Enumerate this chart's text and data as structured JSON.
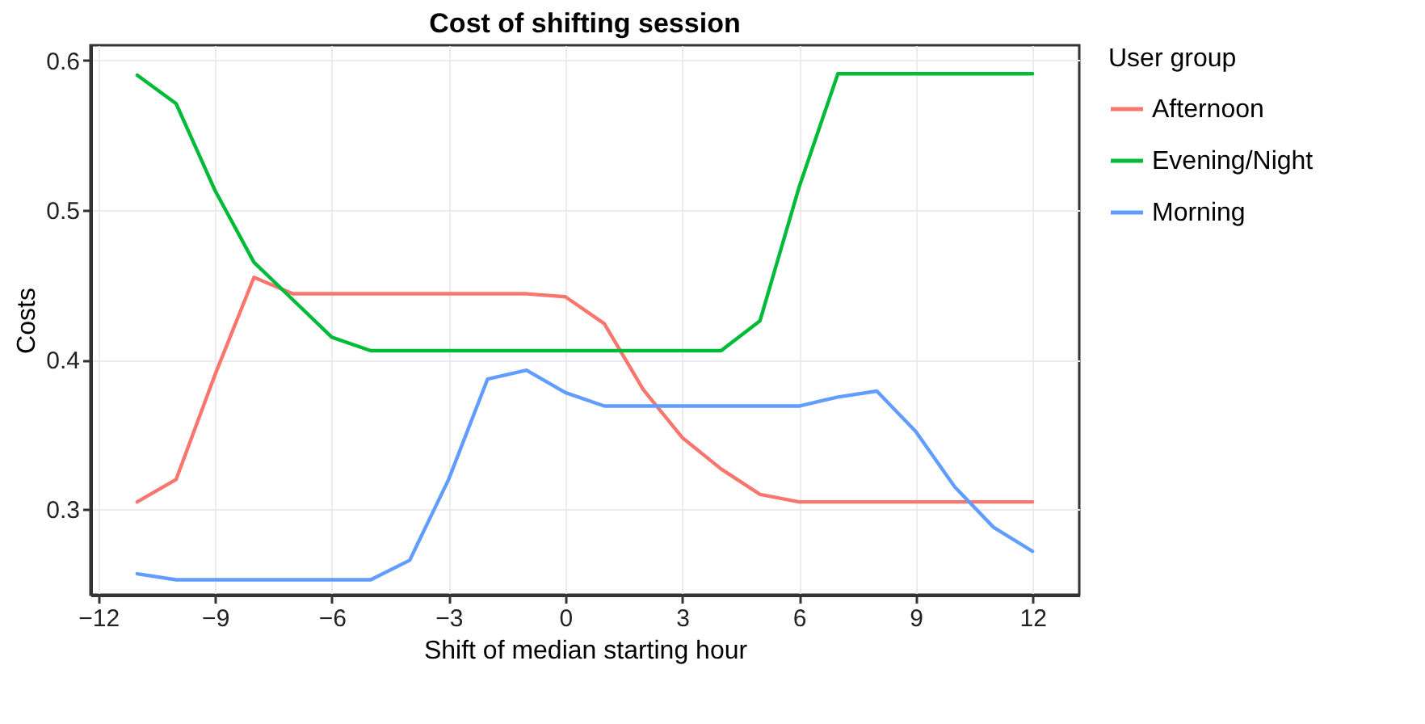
{
  "chart_data": {
    "type": "line",
    "title": "Cost of shifting session",
    "xlabel": "Shift of median starting hour",
    "ylabel": "Costs",
    "legend_title": "User group",
    "legend": "right",
    "grid": true,
    "x": [
      -11,
      -10,
      -9,
      -8,
      -7,
      -6,
      -5,
      -4,
      -3,
      -2,
      -1,
      0,
      1,
      2,
      3,
      4,
      5,
      6,
      7,
      8,
      9,
      10,
      11,
      12
    ],
    "xlim": [
      -12.2,
      13.2
    ],
    "xticks": [
      -12,
      -9,
      -6,
      -3,
      0,
      3,
      6,
      9,
      12
    ],
    "ylim": [
      0.243,
      0.61
    ],
    "yticks": [
      0.3,
      0.4,
      0.5,
      0.6
    ],
    "series": [
      {
        "name": "Afternoon",
        "color": "#f8766d",
        "values": [
          0.305,
          0.32,
          0.39,
          0.455,
          0.444,
          0.444,
          0.444,
          0.444,
          0.444,
          0.444,
          0.444,
          0.442,
          0.424,
          0.38,
          0.348,
          0.327,
          0.31,
          0.305,
          0.305,
          0.305,
          0.305,
          0.305,
          0.305,
          0.305
        ]
      },
      {
        "name": "Evening/Night",
        "color": "#00ba38",
        "values": [
          0.59,
          0.571,
          0.513,
          0.465,
          0.44,
          0.415,
          0.406,
          0.406,
          0.406,
          0.406,
          0.406,
          0.406,
          0.406,
          0.406,
          0.406,
          0.406,
          0.426,
          0.515,
          0.591,
          0.591,
          0.591,
          0.591,
          0.591,
          0.591
        ]
      },
      {
        "name": "Morning",
        "color": "#619cff",
        "values": [
          0.257,
          0.253,
          0.253,
          0.253,
          0.253,
          0.253,
          0.253,
          0.266,
          0.32,
          0.387,
          0.393,
          0.378,
          0.369,
          0.369,
          0.369,
          0.369,
          0.369,
          0.369,
          0.375,
          0.379,
          0.352,
          0.315,
          0.288,
          0.272
        ]
      }
    ]
  }
}
